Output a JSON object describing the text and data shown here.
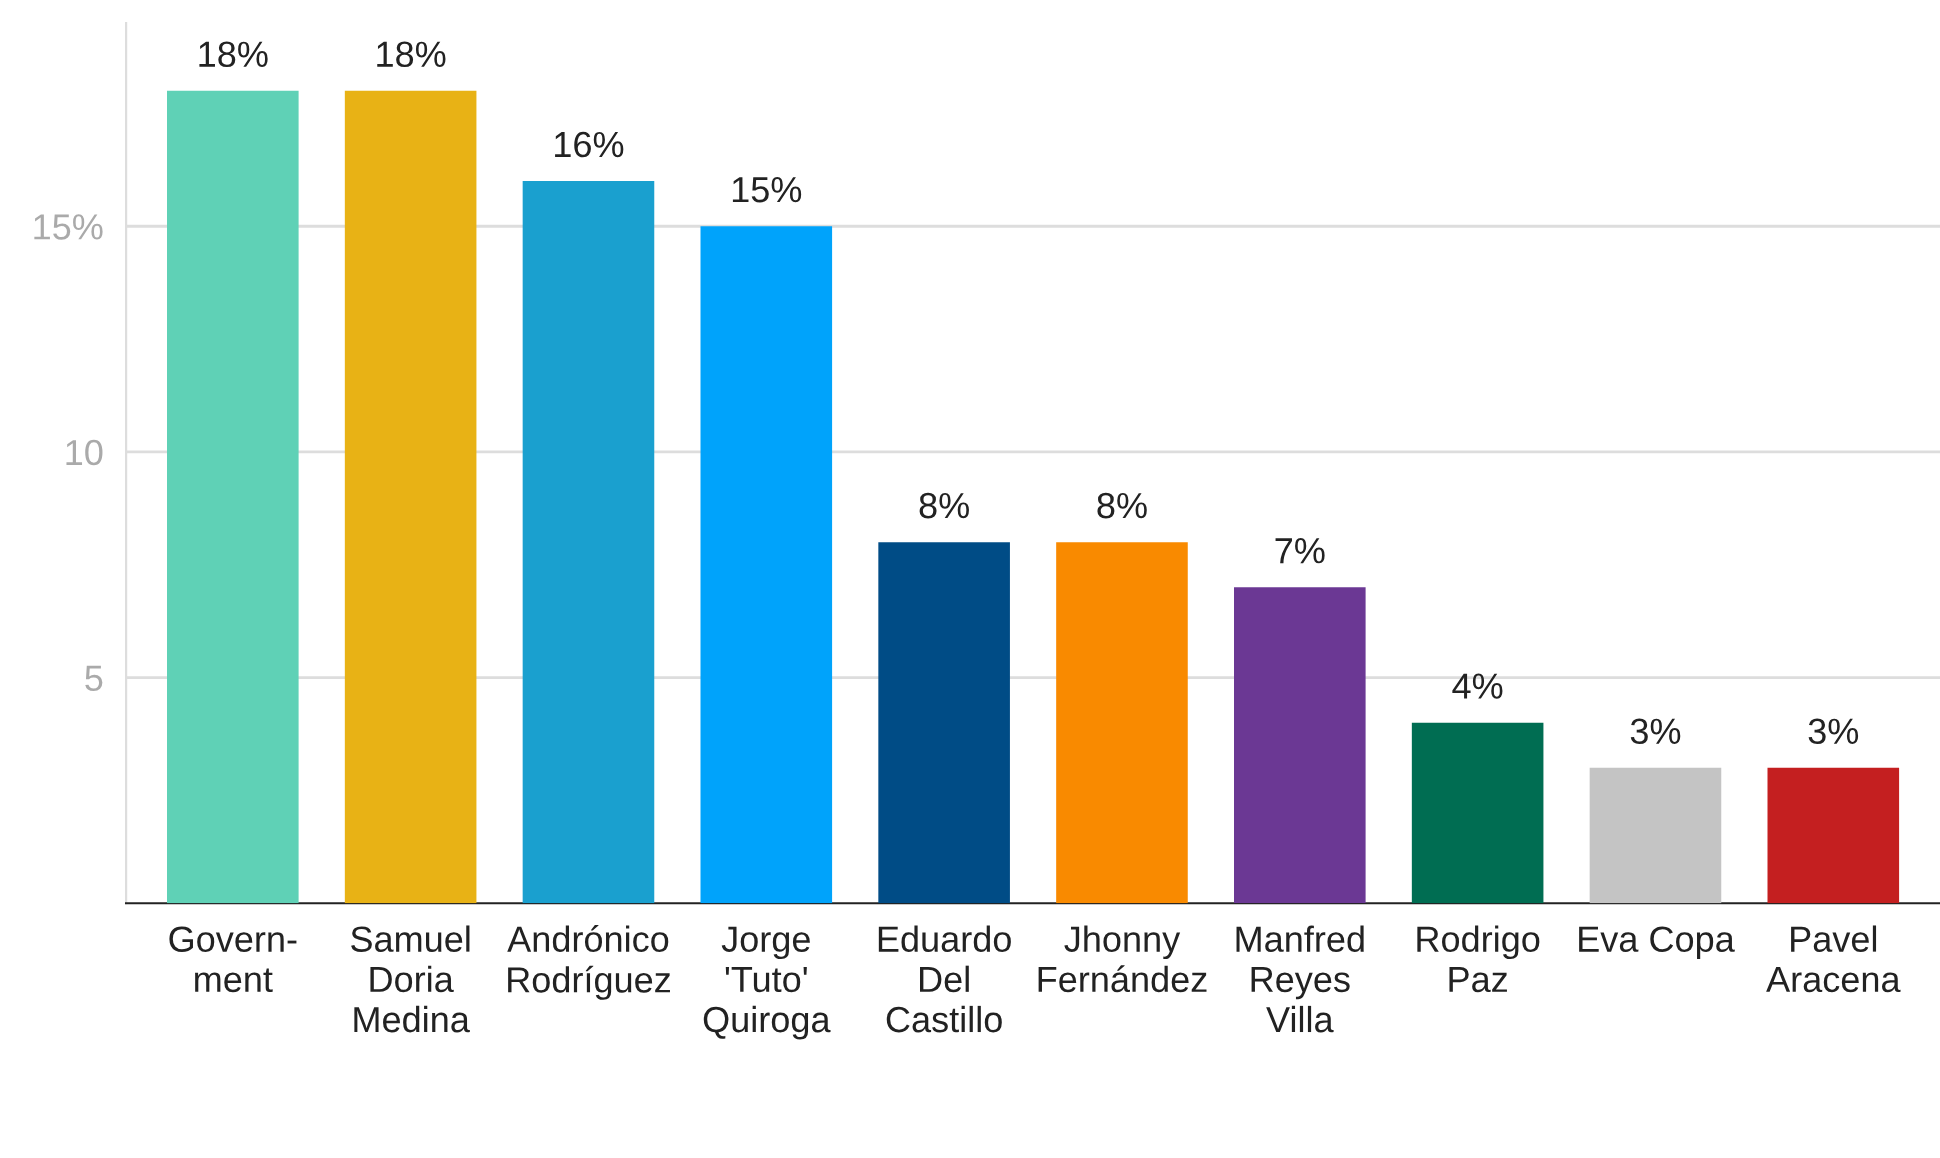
{
  "chart_data": {
    "type": "bar",
    "categories": [
      "Govern-\nment",
      "Samuel\nDoria\nMedina",
      "Andrónico\nRodríguez",
      "Jorge\n'Tuto'\nQuiroga",
      "Eduardo\nDel\nCastillo",
      "Jhonny\nFernández",
      "Manfred\nReyes\nVilla",
      "Rodrigo\nPaz",
      "Eva Copa",
      "Pavel\nAracena"
    ],
    "values": [
      18,
      18,
      16,
      15,
      8,
      8,
      7,
      4,
      3,
      3
    ],
    "colors": [
      "#5fd1b6",
      "#e8b215",
      "#1aa0cf",
      "#00a3fb",
      "#004c86",
      "#f98a00",
      "#6b3894",
      "#006d52",
      "#c4c4c4",
      "#c41f20"
    ],
    "value_labels": [
      "18%",
      "18%",
      "16%",
      "15%",
      "8%",
      "8%",
      "7%",
      "4%",
      "3%",
      "3%"
    ],
    "ylim": [
      0,
      19.5
    ],
    "yticks": [
      5,
      10,
      {
        "value": 15,
        "label": "15%"
      }
    ],
    "grid": "y"
  }
}
